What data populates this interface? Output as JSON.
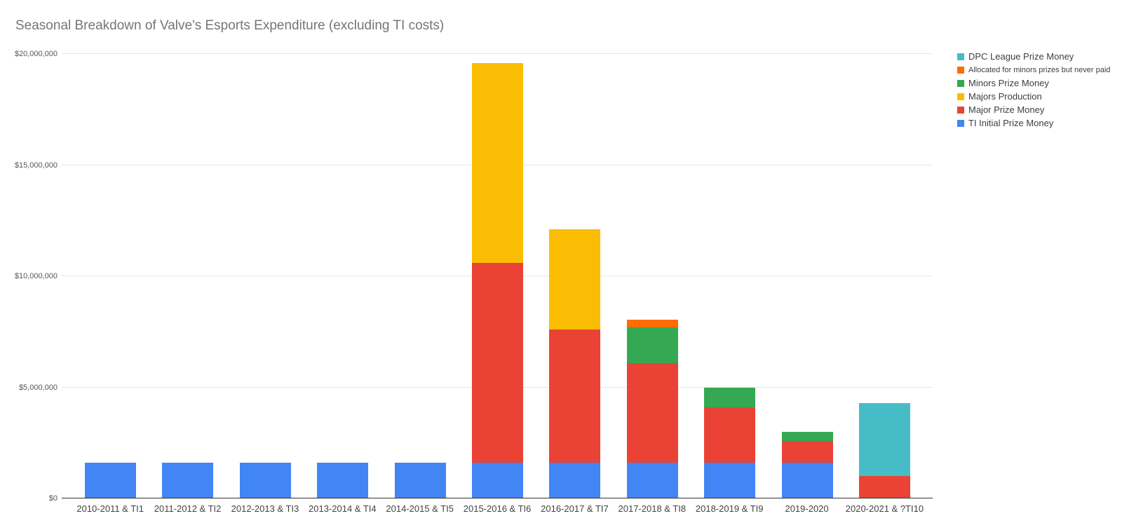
{
  "chart_data": {
    "type": "bar",
    "stacked": true,
    "title": "Seasonal Breakdown of Valve's Esports Expenditure (excluding TI costs)",
    "xlabel": "",
    "ylabel": "",
    "grid": true,
    "legend_position": "right",
    "ylim": [
      0,
      20000000
    ],
    "y_ticks": [
      {
        "value": 0,
        "label": "$0"
      },
      {
        "value": 5000000,
        "label": "$5,000,000"
      },
      {
        "value": 10000000,
        "label": "$10,000,000"
      },
      {
        "value": 15000000,
        "label": "$15,000,000"
      },
      {
        "value": 20000000,
        "label": "$20,000,000"
      }
    ],
    "categories": [
      "2010-2011 & TI1",
      "2011-2012 & TI2",
      "2012-2013 & TI3",
      "2013-2014 & TI4",
      "2014-2015 & TI5",
      "2015-2016 & TI6",
      "2016-2017 & TI7",
      "2017-2018 & TI8",
      "2018-2019 & TI9",
      "2019-2020",
      "2020-2021 & ?TI10"
    ],
    "series": [
      {
        "name": "TI Initial Prize Money",
        "color": "#4285F4",
        "legend_small": false,
        "values": [
          1600000,
          1600000,
          1600000,
          1600000,
          1600000,
          1600000,
          1600000,
          1600000,
          1600000,
          1600000,
          0
        ]
      },
      {
        "name": "Major Prize Money",
        "color": "#EA4335",
        "legend_small": false,
        "values": [
          0,
          0,
          0,
          0,
          0,
          9000000,
          6000000,
          4500000,
          2500000,
          1000000,
          1000000
        ]
      },
      {
        "name": "Majors Production",
        "color": "#FBBC04",
        "legend_small": false,
        "values": [
          0,
          0,
          0,
          0,
          0,
          9000000,
          4500000,
          0,
          0,
          0,
          0
        ]
      },
      {
        "name": "Minors Prize Money",
        "color": "#34A853",
        "legend_small": false,
        "values": [
          0,
          0,
          0,
          0,
          0,
          0,
          0,
          1600000,
          900000,
          400000,
          0
        ]
      },
      {
        "name": "Allocated for minors prizes but never paid",
        "color": "#FF6D01",
        "legend_small": true,
        "values": [
          0,
          0,
          0,
          0,
          0,
          0,
          0,
          350000,
          0,
          0,
          0
        ]
      },
      {
        "name": "DPC League Prize Money",
        "color": "#46BDC6",
        "legend_small": false,
        "values": [
          0,
          0,
          0,
          0,
          0,
          0,
          0,
          0,
          0,
          0,
          3300000
        ]
      }
    ]
  }
}
